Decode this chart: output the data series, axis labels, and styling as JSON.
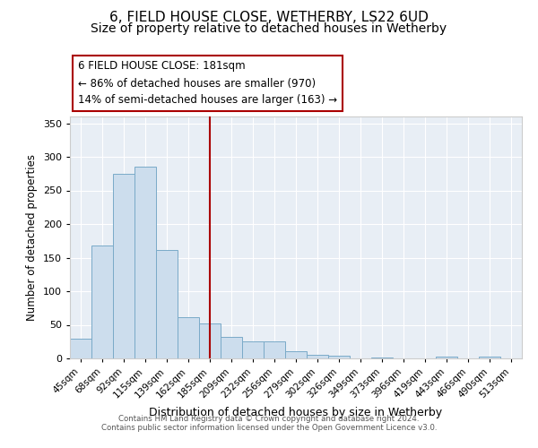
{
  "title": "6, FIELD HOUSE CLOSE, WETHERBY, LS22 6UD",
  "subtitle": "Size of property relative to detached houses in Wetherby",
  "xlabel": "Distribution of detached houses by size in Wetherby",
  "ylabel": "Number of detached properties",
  "categories": [
    "45sqm",
    "68sqm",
    "92sqm",
    "115sqm",
    "139sqm",
    "162sqm",
    "185sqm",
    "209sqm",
    "232sqm",
    "256sqm",
    "279sqm",
    "302sqm",
    "326sqm",
    "349sqm",
    "373sqm",
    "396sqm",
    "419sqm",
    "443sqm",
    "466sqm",
    "490sqm",
    "513sqm"
  ],
  "values": [
    29,
    168,
    275,
    285,
    162,
    61,
    52,
    32,
    25,
    25,
    11,
    5,
    4,
    0,
    2,
    0,
    0,
    3,
    0,
    3,
    0
  ],
  "bar_color": "#ccdded",
  "bar_edgecolor": "#7aaac8",
  "vline_index": 6,
  "vline_color": "#aa0000",
  "annotation_box_text": "6 FIELD HOUSE CLOSE: 181sqm\n← 86% of detached houses are smaller (970)\n14% of semi-detached houses are larger (163) →",
  "annotation_box_color": "#aa0000",
  "annotation_box_fill": "#ffffff",
  "ylim": [
    0,
    360
  ],
  "yticks": [
    0,
    50,
    100,
    150,
    200,
    250,
    300,
    350
  ],
  "footer_line1": "Contains HM Land Registry data © Crown copyright and database right 2024.",
  "footer_line2": "Contains public sector information licensed under the Open Government Licence v3.0.",
  "title_fontsize": 11,
  "subtitle_fontsize": 10,
  "bg_color": "#ffffff",
  "plot_bg_color": "#e8eef5"
}
